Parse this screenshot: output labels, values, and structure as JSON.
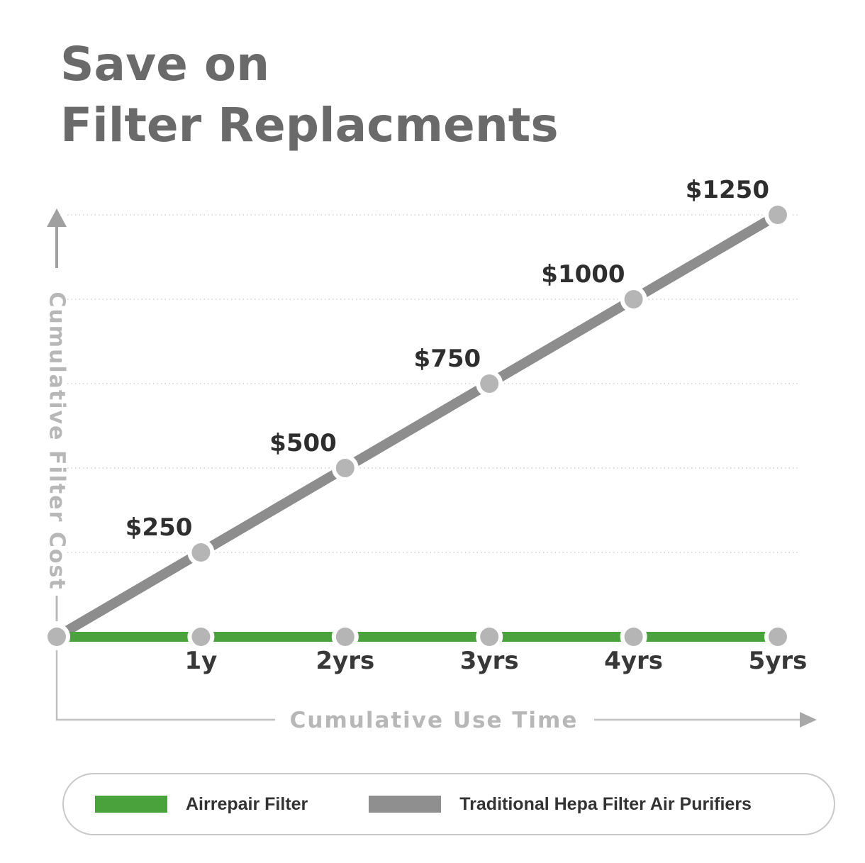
{
  "title": {
    "line1": "Save on",
    "line2": "Filter Replacments",
    "color": "#6a6a6a"
  },
  "chart_data": {
    "type": "line",
    "title": "Save on Filter Replacments",
    "xlabel": "Cumulative Use Time",
    "ylabel": "Cumulative Filter Cost",
    "xlim": [
      0,
      5
    ],
    "ylim": [
      0,
      1250
    ],
    "x": [
      0,
      1,
      2,
      3,
      4,
      5
    ],
    "x_tick_labels": [
      "1y",
      "2yrs",
      "3yrs",
      "4yrs",
      "5yrs"
    ],
    "grid": "horizontal-dotted",
    "grid_values": [
      250,
      500,
      750,
      1000,
      1250
    ],
    "legend_position": "bottom",
    "series": [
      {
        "name": "Airrepair Filter",
        "color": "#4aa23c",
        "values": [
          0,
          0,
          0,
          0,
          0,
          0
        ]
      },
      {
        "name": "Traditional Hepa Filter Air Purifiers",
        "color": "#8d8d8d",
        "values": [
          0,
          250,
          500,
          750,
          1000,
          1250
        ]
      }
    ],
    "point_labels": [
      "$250",
      "$500",
      "$750",
      "$1000",
      "$1250"
    ],
    "point_color": "#b5b5b5"
  },
  "legend": {
    "items": [
      {
        "label": "Airrepair Filter",
        "color": "#4aa23c"
      },
      {
        "label": "Traditional Hepa Filter Air Purifiers",
        "color": "#8f8f8f"
      }
    ]
  },
  "colors": {
    "grid": "#d0d0d0",
    "axis": "#c0c0c0",
    "axis_text": "#b7b7b7",
    "value_text": "#2e2e2e"
  }
}
